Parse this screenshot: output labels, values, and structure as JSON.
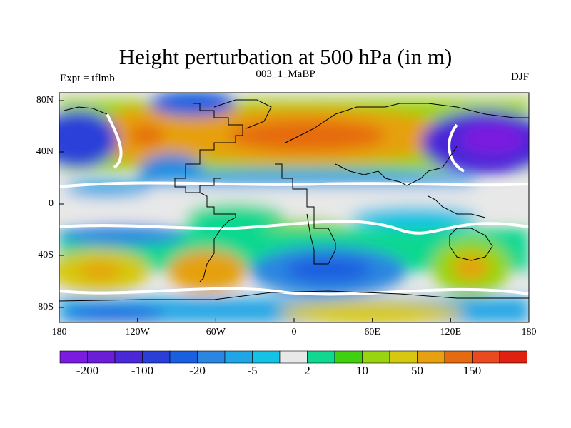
{
  "title": "Height perturbation at 500 hPa (in m)",
  "left_label": "Expt = tflmb",
  "center_label": "003_1_MaBP",
  "right_label": "DJF",
  "map": {
    "lon_labels": [
      "180",
      "120W",
      "60W",
      "0",
      "60E",
      "120E",
      "180"
    ],
    "lat_labels": [
      "80N",
      "40N",
      "0",
      "40S",
      "80S"
    ],
    "lon_range": [
      -180,
      180
    ],
    "lat_range": [
      -90,
      90
    ]
  },
  "colorbar": {
    "colors": [
      "#7b1be0",
      "#6a1ed8",
      "#4a28d8",
      "#2a3fd8",
      "#1a5fe0",
      "#2a86e0",
      "#20a6e6",
      "#14c2e6",
      "#e8e8e8",
      "#10d890",
      "#40d010",
      "#9ad410",
      "#d6c810",
      "#e6a010",
      "#e66a10",
      "#ea4a20",
      "#e02010"
    ],
    "labels": [
      "-200",
      "-100",
      "-20",
      "-5",
      "2",
      "10",
      "50",
      "150"
    ]
  },
  "colors": {
    "white_contour": "#ffffff",
    "coastline": "#000000"
  }
}
